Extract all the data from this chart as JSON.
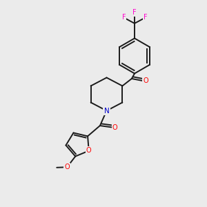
{
  "background_color": "#ebebeb",
  "bond_color": "#1a1a1a",
  "atom_colors": {
    "N": "#0000cc",
    "O": "#ff0000",
    "F": "#ff00cc",
    "C": "#1a1a1a"
  },
  "figsize": [
    3.0,
    3.0
  ],
  "dpi": 100,
  "lw": 1.4,
  "fs": 7.0
}
